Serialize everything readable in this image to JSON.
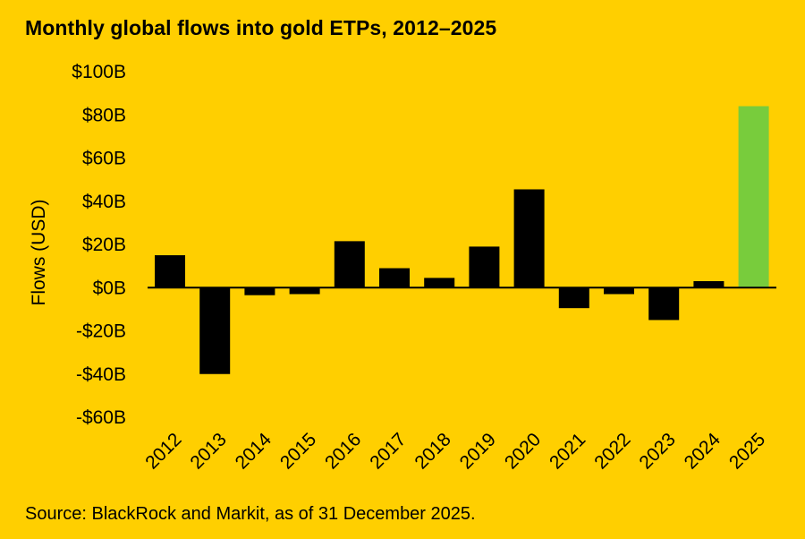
{
  "title": "Monthly global flows into gold ETPs, 2012–2025",
  "source": "Source: BlackRock and Markit, as of 31 December 2025.",
  "colors": {
    "background": "#ffcf00",
    "bar": "#000000",
    "highlight_bar": "#78cc3c",
    "text": "#000000"
  },
  "chart_data": {
    "type": "bar",
    "title": "Monthly global flows into gold ETPs, 2012–2025",
    "xlabel": "",
    "ylabel": "Flows (USD)",
    "ylim": [
      -60,
      100
    ],
    "yticks": [
      100,
      80,
      60,
      40,
      20,
      0,
      -20,
      -40,
      -60
    ],
    "ytick_labels": [
      "$100B",
      "$80B",
      "$60B",
      "$40B",
      "$20B",
      "$0B",
      "-$20B",
      "-$40B",
      "-$60B"
    ],
    "categories": [
      "2012",
      "2013",
      "2014",
      "2015",
      "2016",
      "2017",
      "2018",
      "2019",
      "2020",
      "2021",
      "2022",
      "2023",
      "2024",
      "2025"
    ],
    "values": [
      15,
      -40,
      -3.5,
      -3,
      21.5,
      9,
      4.5,
      19,
      45.5,
      -9.5,
      -3,
      -15,
      3,
      84
    ],
    "highlight_category": "2025",
    "units": "USD billions",
    "grid": false,
    "legend": "none"
  }
}
